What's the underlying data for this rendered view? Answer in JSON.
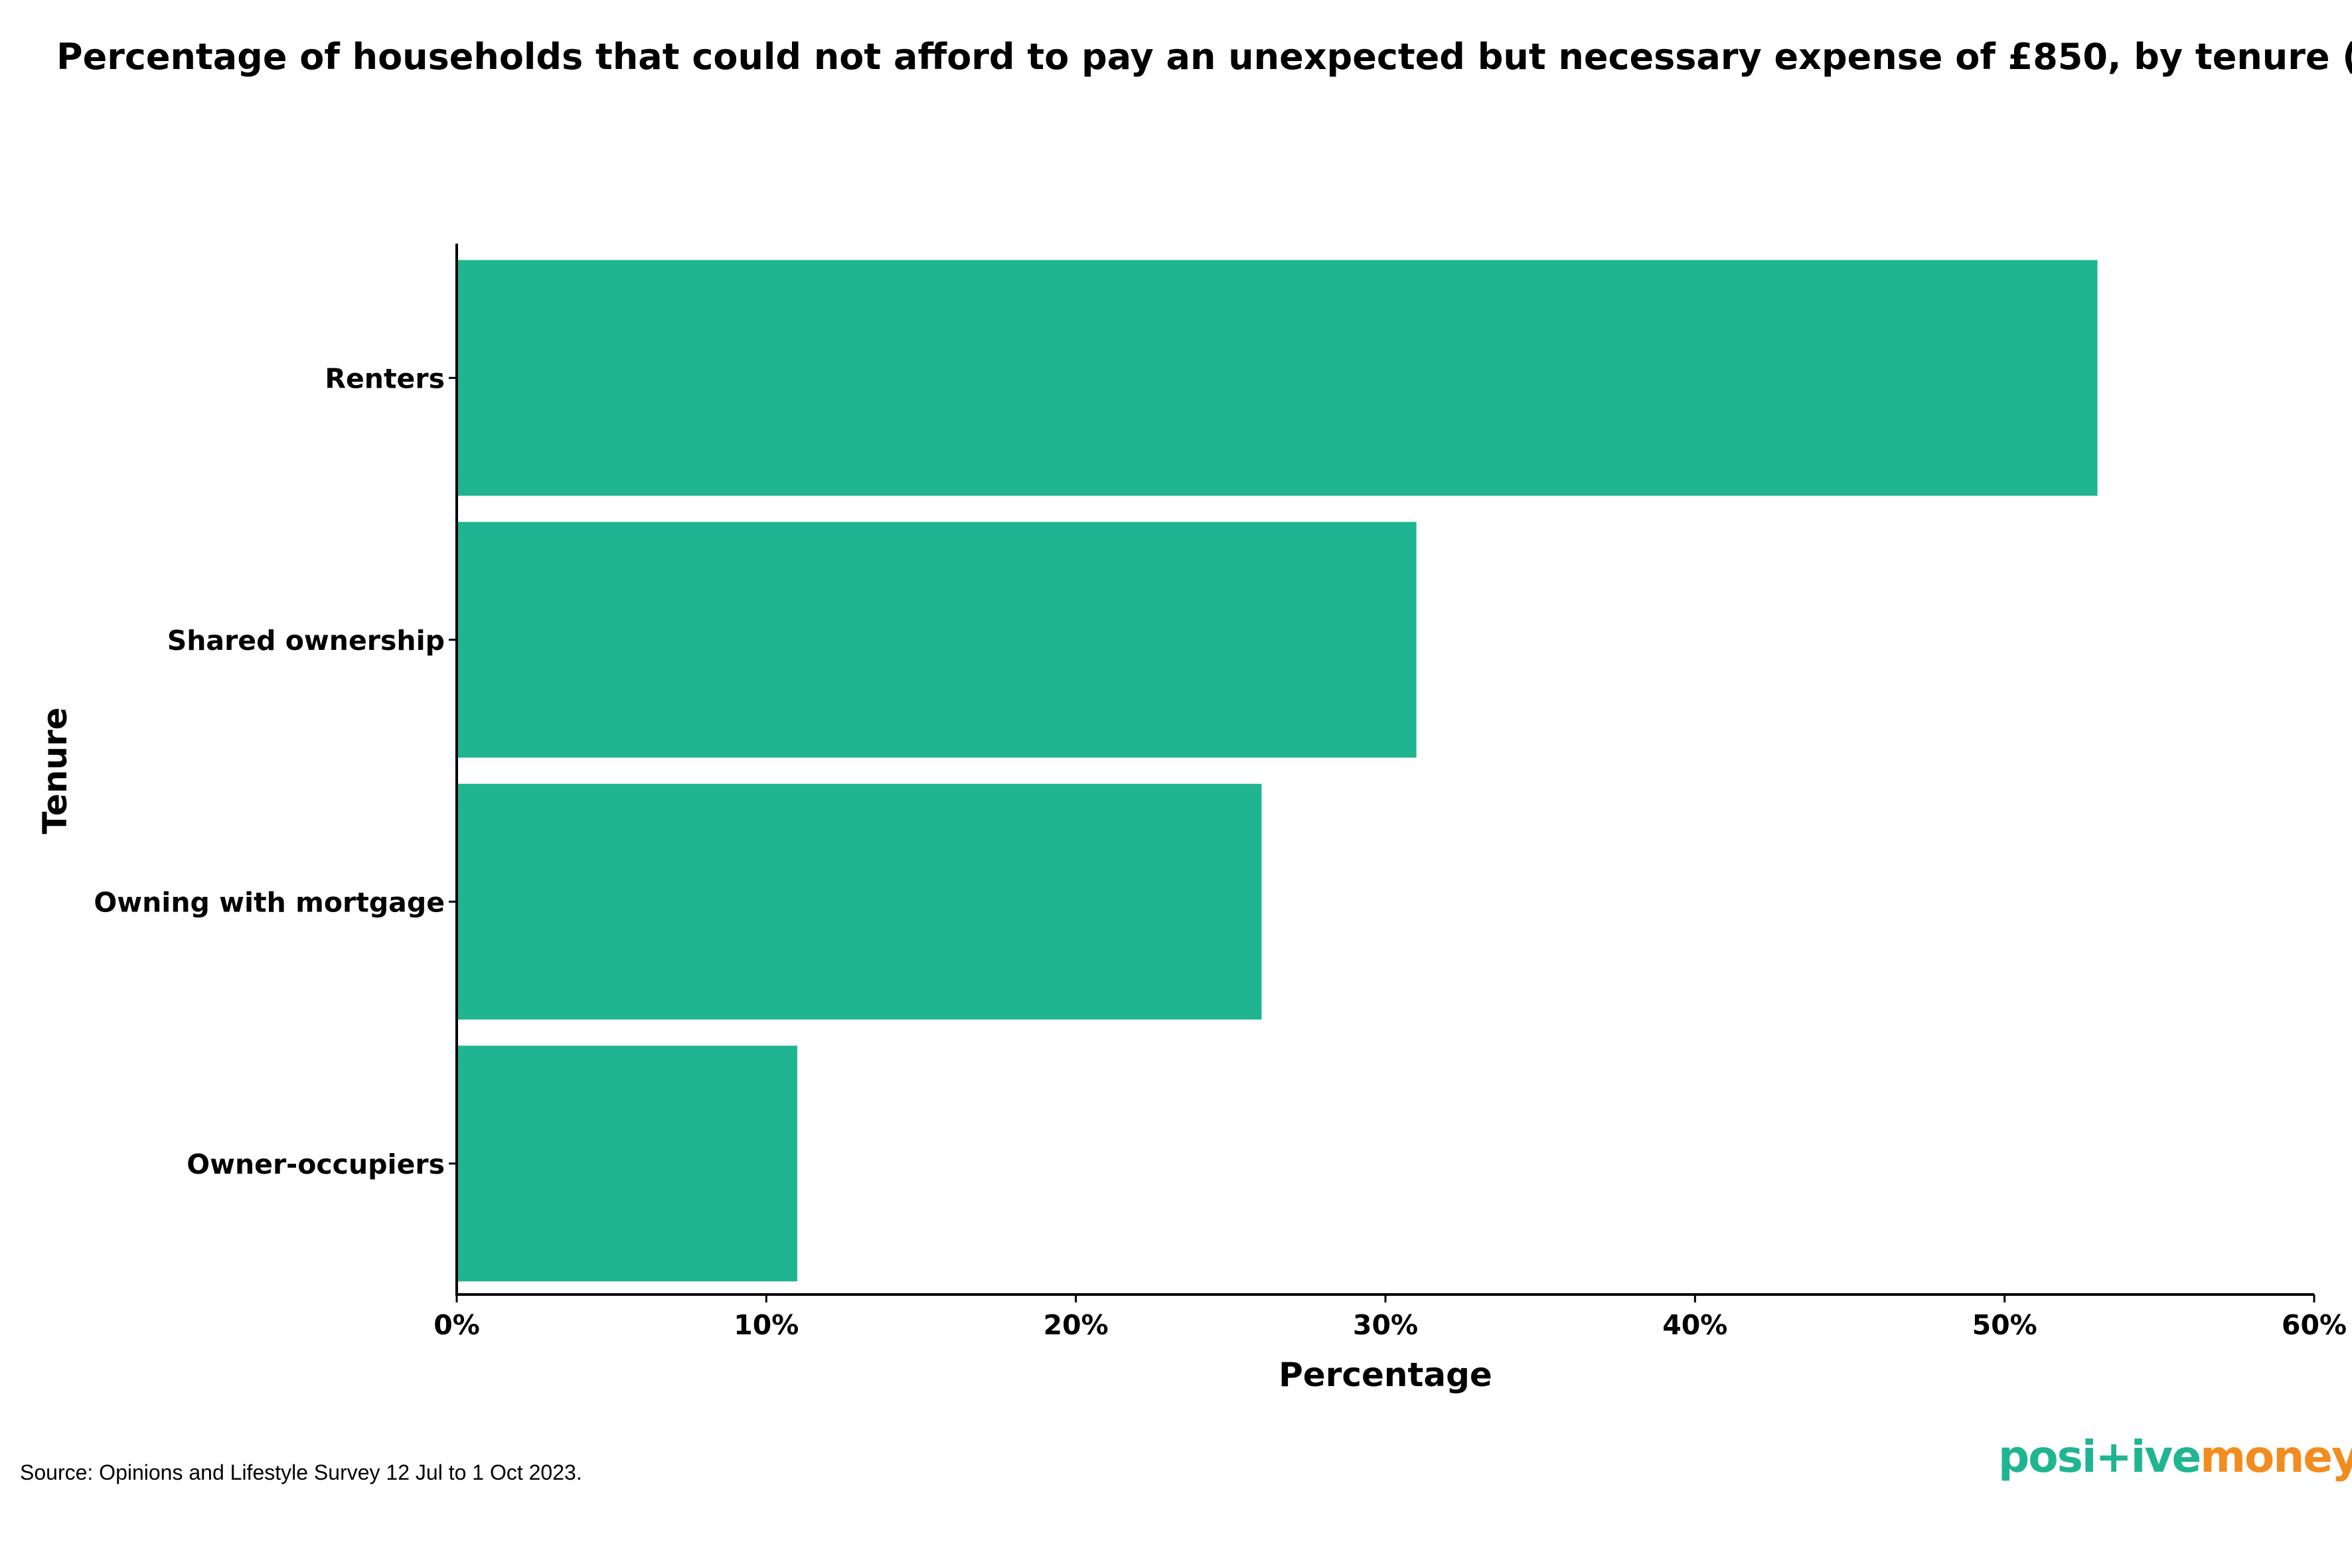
{
  "chart_data": {
    "type": "bar",
    "orientation": "horizontal",
    "title": "Percentage of households that could not afford to pay an unexpected but necessary expense of £850, by tenure (GB)",
    "xlabel": "Percentage",
    "ylabel": "Tenure",
    "categories": [
      "Renters",
      "Shared ownership",
      "Owning with mortgage",
      "Owner-occupiers"
    ],
    "values": [
      53,
      31,
      26,
      11
    ],
    "xlim": [
      0,
      60
    ],
    "x_ticks": [
      0,
      10,
      20,
      30,
      40,
      50,
      60
    ],
    "x_tick_labels": [
      "0%",
      "10%",
      "20%",
      "30%",
      "40%",
      "50%",
      "60%"
    ],
    "grid": false,
    "legend": "none",
    "bar_color": "#1fb590"
  },
  "footer": {
    "source": "Source: Opinions and Lifestyle Survey 12 Jul to 1 Oct 2023."
  },
  "brand": {
    "part1": "posi+ive",
    "part2": "money",
    "color1": "#1fb590",
    "color2": "#f28c1e"
  }
}
